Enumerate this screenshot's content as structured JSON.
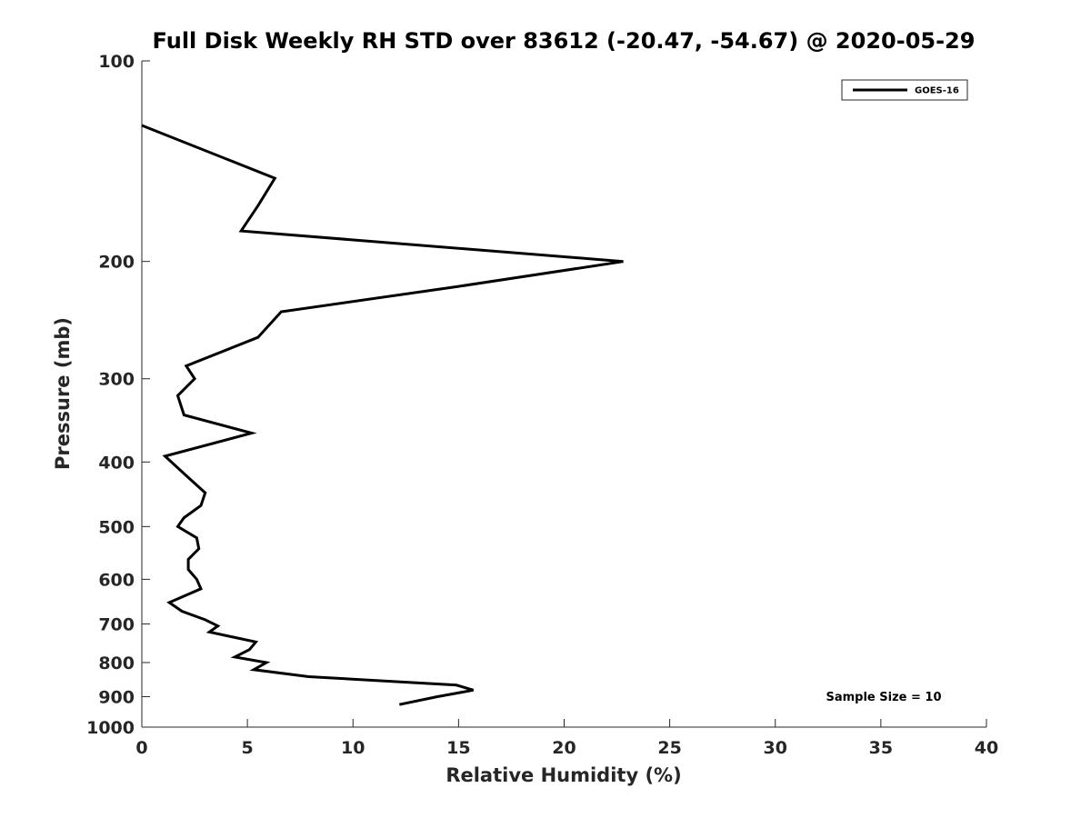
{
  "chart_data": {
    "type": "line",
    "title": "Full Disk Weekly RH STD over 83612 (-20.47, -54.67) @ 2020-05-29",
    "xlabel": "Relative Humidity (%)",
    "ylabel": "Pressure (mb)",
    "xlim": [
      0,
      40
    ],
    "ylim": [
      100,
      1000
    ],
    "yscale": "log",
    "y_reversed": true,
    "x_ticks": [
      0,
      5,
      10,
      15,
      20,
      25,
      30,
      35,
      40
    ],
    "y_ticks": [
      100,
      200,
      300,
      400,
      500,
      600,
      700,
      800,
      900,
      1000
    ],
    "legend_position": "top-right",
    "annotation": "Sample Size = 10",
    "series": [
      {
        "name": "GOES-16",
        "color": "#000000",
        "points": [
          {
            "x": 0.0,
            "y": 125
          },
          {
            "x": 6.3,
            "y": 150
          },
          {
            "x": 5.5,
            "y": 165
          },
          {
            "x": 4.7,
            "y": 180
          },
          {
            "x": 22.8,
            "y": 200
          },
          {
            "x": 15.0,
            "y": 218
          },
          {
            "x": 6.6,
            "y": 238
          },
          {
            "x": 5.5,
            "y": 260
          },
          {
            "x": 2.1,
            "y": 287
          },
          {
            "x": 2.5,
            "y": 300
          },
          {
            "x": 1.7,
            "y": 318
          },
          {
            "x": 2.0,
            "y": 340
          },
          {
            "x": 5.2,
            "y": 362
          },
          {
            "x": 1.1,
            "y": 392
          },
          {
            "x": 2.2,
            "y": 422
          },
          {
            "x": 3.0,
            "y": 445
          },
          {
            "x": 2.8,
            "y": 465
          },
          {
            "x": 2.0,
            "y": 485
          },
          {
            "x": 1.7,
            "y": 500
          },
          {
            "x": 2.6,
            "y": 520
          },
          {
            "x": 2.7,
            "y": 540
          },
          {
            "x": 2.2,
            "y": 560
          },
          {
            "x": 2.2,
            "y": 580
          },
          {
            "x": 2.6,
            "y": 600
          },
          {
            "x": 2.8,
            "y": 620
          },
          {
            "x": 1.3,
            "y": 650
          },
          {
            "x": 1.9,
            "y": 670
          },
          {
            "x": 3.0,
            "y": 690
          },
          {
            "x": 3.6,
            "y": 705
          },
          {
            "x": 3.2,
            "y": 720
          },
          {
            "x": 5.4,
            "y": 745
          },
          {
            "x": 5.1,
            "y": 765
          },
          {
            "x": 4.4,
            "y": 785
          },
          {
            "x": 5.9,
            "y": 800
          },
          {
            "x": 5.3,
            "y": 820
          },
          {
            "x": 7.9,
            "y": 840
          },
          {
            "x": 14.9,
            "y": 865
          },
          {
            "x": 15.7,
            "y": 880
          },
          {
            "x": 14.0,
            "y": 900
          },
          {
            "x": 12.2,
            "y": 925
          }
        ]
      }
    ]
  }
}
